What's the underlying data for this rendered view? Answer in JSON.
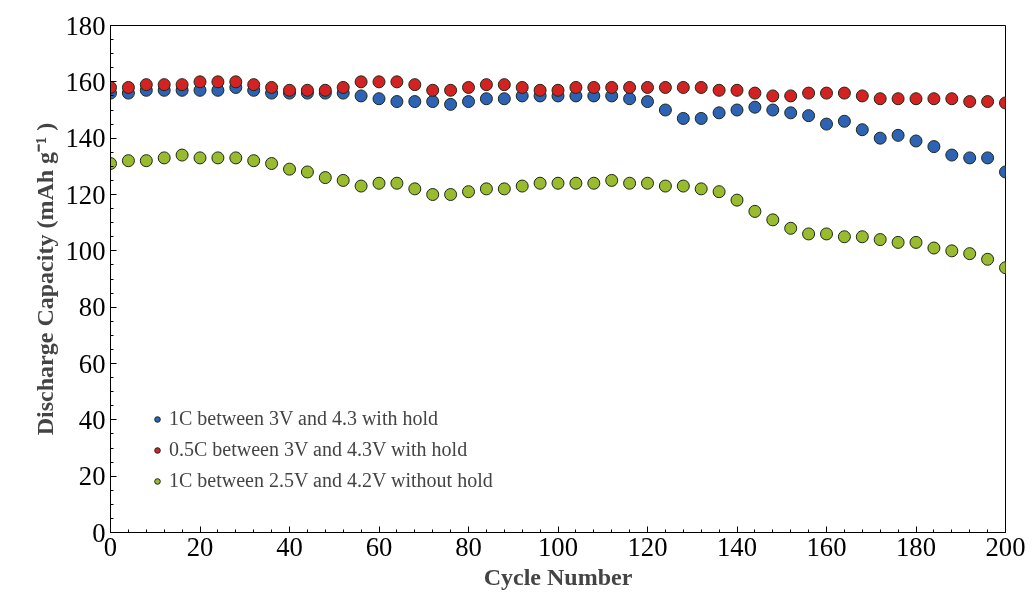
{
  "chart_data": {
    "type": "scatter",
    "xlabel": "Cycle Number",
    "ylabel": "Discharge Capacity (mAh g⁻¹ )",
    "x": [
      0,
      4,
      8,
      12,
      16,
      20,
      24,
      28,
      32,
      36,
      40,
      44,
      48,
      52,
      56,
      60,
      64,
      68,
      72,
      76,
      80,
      84,
      88,
      92,
      96,
      100,
      104,
      108,
      112,
      116,
      120,
      124,
      128,
      132,
      136,
      140,
      144,
      148,
      152,
      156,
      160,
      164,
      168,
      172,
      176,
      180,
      184,
      188,
      192,
      196,
      200
    ],
    "series": [
      {
        "name": "1C between 3V and 4.3 with hold",
        "color": "#2e62b4",
        "values": [
          156,
          156,
          157,
          157,
          157,
          157,
          157,
          158,
          157,
          156,
          156,
          156,
          156,
          156,
          155,
          154,
          153,
          153,
          153,
          152,
          153,
          154,
          154,
          155,
          155,
          155,
          155,
          155,
          155,
          154,
          153,
          150,
          147,
          147,
          149,
          150,
          151,
          150,
          149,
          148,
          145,
          146,
          143,
          140,
          141,
          139,
          137,
          134,
          133,
          133,
          128
        ]
      },
      {
        "name": "0.5C between 3V and 4.3V with hold",
        "color": "#d42222",
        "values": [
          158,
          158,
          159,
          159,
          159,
          160,
          160,
          160,
          159,
          158,
          157,
          157,
          157,
          158,
          160,
          160,
          160,
          159,
          157,
          157,
          158,
          159,
          159,
          158,
          157,
          157,
          158,
          158,
          158,
          158,
          158,
          158,
          158,
          158,
          157,
          157,
          156,
          155,
          155,
          156,
          156,
          156,
          155,
          154,
          154,
          154,
          154,
          154,
          153,
          153,
          152.5
        ]
      },
      {
        "name": "1C between 2.5V and 4.2V without hold",
        "color": "#9bbb2e",
        "values": [
          131,
          132,
          132,
          133,
          134,
          133,
          133,
          133,
          132,
          131,
          129,
          128,
          126,
          125,
          123,
          124,
          124,
          122,
          120,
          120,
          121,
          122,
          122,
          123,
          124,
          124,
          124,
          124,
          125,
          124,
          124,
          123,
          123,
          122,
          121,
          118,
          114,
          111,
          108,
          106,
          106,
          105,
          105,
          104,
          103,
          103,
          101,
          100,
          99,
          97,
          94
        ]
      }
    ],
    "xlim": [
      0,
      200
    ],
    "xticks": [
      0,
      20,
      40,
      60,
      80,
      100,
      120,
      140,
      160,
      180,
      200
    ],
    "ylim": [
      0,
      180
    ],
    "yticks": [
      0,
      20,
      40,
      60,
      80,
      100,
      120,
      140,
      160,
      180
    ],
    "marker": "circle",
    "legend": "bottom left",
    "grid": false
  }
}
